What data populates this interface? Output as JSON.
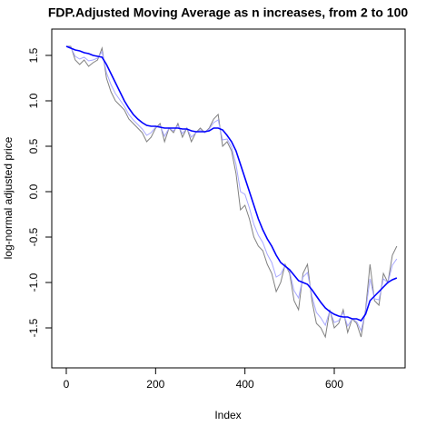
{
  "chart_data": {
    "type": "line",
    "title": "FDP.Adjusted Moving Average as n increases, from 2 to 100",
    "x_label": "Index",
    "y_label": "log-normal adjusted price",
    "x": [
      0,
      10,
      20,
      30,
      40,
      50,
      60,
      70,
      80,
      90,
      100,
      110,
      120,
      130,
      140,
      150,
      160,
      170,
      180,
      190,
      200,
      210,
      220,
      230,
      240,
      250,
      260,
      270,
      280,
      290,
      300,
      310,
      320,
      330,
      340,
      350,
      360,
      370,
      380,
      390,
      400,
      410,
      420,
      430,
      440,
      450,
      460,
      470,
      480,
      490,
      500,
      510,
      520,
      530,
      540,
      550,
      560,
      570,
      580,
      590,
      600,
      610,
      620,
      630,
      640,
      650,
      660,
      670,
      680,
      690,
      700,
      710,
      720,
      730,
      740
    ],
    "series": [
      {
        "color": "#808080",
        "values": [
          1.6,
          1.6,
          1.45,
          1.4,
          1.45,
          1.38,
          1.42,
          1.45,
          1.58,
          1.25,
          1.1,
          1.0,
          0.95,
          0.9,
          0.8,
          0.75,
          0.7,
          0.65,
          0.55,
          0.6,
          0.7,
          0.75,
          0.55,
          0.7,
          0.65,
          0.75,
          0.6,
          0.7,
          0.55,
          0.65,
          0.7,
          0.65,
          0.7,
          0.8,
          0.85,
          0.5,
          0.55,
          0.45,
          0.2,
          -0.2,
          -0.15,
          -0.3,
          -0.5,
          -0.6,
          -0.65,
          -0.8,
          -0.9,
          -1.1,
          -1.0,
          -0.8,
          -0.9,
          -1.2,
          -1.3,
          -0.9,
          -0.8,
          -1.2,
          -1.45,
          -1.5,
          -1.6,
          -1.3,
          -1.5,
          -1.45,
          -1.3,
          -1.55,
          -1.4,
          -1.45,
          -1.6,
          -1.3,
          -0.8,
          -1.2,
          -1.25,
          -0.9,
          -1.0,
          -0.7,
          -0.6
        ]
      },
      {
        "color": "#a8a8ff",
        "values": [
          1.6,
          1.59,
          1.49,
          1.46,
          1.48,
          1.44,
          1.45,
          1.47,
          1.54,
          1.31,
          1.18,
          1.08,
          1.01,
          0.94,
          0.85,
          0.79,
          0.74,
          0.69,
          0.62,
          0.65,
          0.71,
          0.73,
          0.61,
          0.7,
          0.67,
          0.73,
          0.64,
          0.7,
          0.6,
          0.65,
          0.68,
          0.65,
          0.69,
          0.76,
          0.79,
          0.57,
          0.58,
          0.49,
          0.3,
          0.0,
          -0.03,
          -0.18,
          -0.36,
          -0.48,
          -0.56,
          -0.69,
          -0.78,
          -0.94,
          -0.91,
          -0.81,
          -0.88,
          -1.09,
          -1.17,
          -0.94,
          -0.89,
          -1.15,
          -1.33,
          -1.39,
          -1.47,
          -1.31,
          -1.44,
          -1.42,
          -1.33,
          -1.48,
          -1.4,
          -1.43,
          -1.53,
          -1.32,
          -0.96,
          -1.18,
          -1.19,
          -0.96,
          -1.0,
          -0.81,
          -0.74
        ]
      },
      {
        "color": "#0000ff",
        "values": [
          1.6,
          1.58,
          1.56,
          1.55,
          1.53,
          1.52,
          1.5,
          1.49,
          1.48,
          1.4,
          1.3,
          1.2,
          1.1,
          1.0,
          0.92,
          0.85,
          0.8,
          0.76,
          0.73,
          0.72,
          0.72,
          0.71,
          0.7,
          0.7,
          0.7,
          0.7,
          0.69,
          0.69,
          0.67,
          0.66,
          0.66,
          0.66,
          0.67,
          0.7,
          0.7,
          0.68,
          0.62,
          0.55,
          0.45,
          0.3,
          0.15,
          0.0,
          -0.15,
          -0.3,
          -0.42,
          -0.52,
          -0.6,
          -0.7,
          -0.78,
          -0.82,
          -0.86,
          -0.92,
          -0.98,
          -1.0,
          -1.02,
          -1.08,
          -1.15,
          -1.22,
          -1.28,
          -1.32,
          -1.35,
          -1.37,
          -1.38,
          -1.38,
          -1.4,
          -1.4,
          -1.42,
          -1.35,
          -1.2,
          -1.15,
          -1.1,
          -1.05,
          -1.0,
          -0.97,
          -0.95
        ]
      }
    ],
    "xlim": [
      -32.5,
      758.6
    ],
    "ylim": [
      -1.94,
      1.79
    ],
    "xticks": [
      0,
      200,
      400,
      600
    ],
    "yticks": [
      -1.5,
      {
        "value": -1,
        "label": "-1.0"
      },
      -0.5,
      {
        "value": 0,
        "label": "0.0"
      },
      0.5,
      {
        "value": 1,
        "label": "1.0"
      },
      1.5
    ]
  }
}
